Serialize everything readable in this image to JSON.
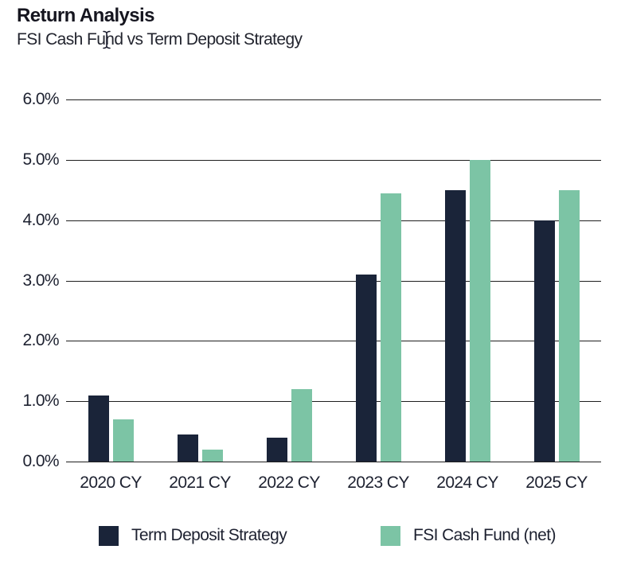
{
  "header": {
    "title": "Return Analysis",
    "subtitle": "FSI Cash Fund vs Term Deposit Strategy"
  },
  "colors": {
    "term_deposit": "#1a2439",
    "fsi_cash_fund": "#7cc4a5",
    "gridline": "#1f1f1f",
    "text": "#1d2130",
    "background": "#ffffff"
  },
  "icons": {
    "text_cursor": "i-beam-mouse-cursor"
  },
  "chart_data": {
    "type": "bar",
    "title": "Return Analysis",
    "subtitle": "FSI Cash Fund vs Term Deposit Strategy",
    "categories": [
      "2020 CY",
      "2021 CY",
      "2022 CY",
      "2023 CY",
      "2024 CY",
      "2025 CY"
    ],
    "series": [
      {
        "name": "Term Deposit Strategy",
        "color": "#1a2439",
        "values": [
          1.1,
          0.45,
          0.4,
          3.1,
          4.5,
          4.0
        ]
      },
      {
        "name": "FSI Cash Fund (net)",
        "color": "#7cc4a5",
        "values": [
          0.7,
          0.2,
          1.2,
          4.45,
          5.0,
          4.5
        ]
      }
    ],
    "xlabel": "",
    "ylabel": "",
    "ylim": [
      0,
      6
    ],
    "y_ticks": [
      {
        "value": 6,
        "label": "6.0%"
      },
      {
        "value": 5,
        "label": "5.0%"
      },
      {
        "value": 4,
        "label": "4.0%"
      },
      {
        "value": 3,
        "label": "3.0%"
      },
      {
        "value": 2,
        "label": "2.0%"
      },
      {
        "value": 1,
        "label": "1.0%"
      },
      {
        "value": 0,
        "label": "0.0%"
      }
    ],
    "grid": true,
    "legend_position": "bottom"
  }
}
